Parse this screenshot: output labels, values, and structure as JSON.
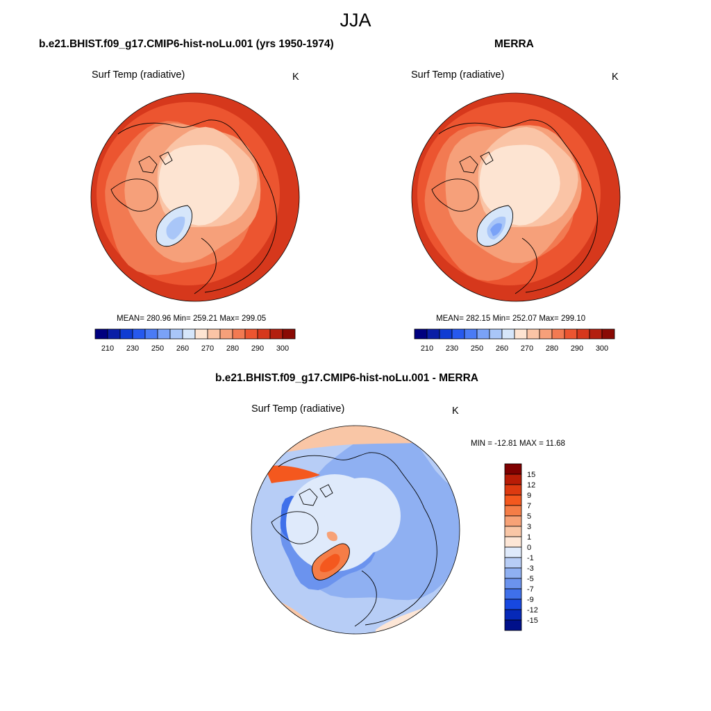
{
  "title": "JJA",
  "panels": [
    {
      "title": "b.e21.BHIST.f09_g17.CMIP6-hist-noLu.001 (yrs 1950-1974)",
      "variable": "Surf Temp (radiative)",
      "units": "K",
      "stats": "MEAN= 280.96  Min= 259.21  Max= 299.05"
    },
    {
      "title": "MERRA",
      "variable": "Surf Temp (radiative)",
      "units": "K",
      "stats": "MEAN= 282.15  Min= 252.07  Max= 299.10"
    }
  ],
  "abs_colorbar": {
    "labels": [
      "210",
      "230",
      "250",
      "260",
      "270",
      "280",
      "290",
      "300"
    ],
    "colors": [
      "#00007f",
      "#0a1ea6",
      "#0f3cd2",
      "#2659ee",
      "#4a7bf5",
      "#7aa2f7",
      "#a9c6f8",
      "#d6e6fa",
      "#fde4d2",
      "#fac4a6",
      "#f6a07a",
      "#f27a52",
      "#ec5530",
      "#d6381c",
      "#b31f0f",
      "#8a0a04"
    ]
  },
  "diff_panel": {
    "title": "b.e21.BHIST.f09_g17.CMIP6-hist-noLu.001 - MERRA",
    "variable": "Surf Temp (radiative)",
    "units": "K",
    "stats": "MIN = -12.81 MAX =  11.68"
  },
  "diff_colorbar": {
    "labels": [
      "15",
      "12",
      "9",
      "7",
      "5",
      "3",
      "1",
      "0",
      "-1",
      "-3",
      "-5",
      "-7",
      "-9",
      "-12",
      "-15"
    ],
    "colors": [
      "#7f0000",
      "#b81c06",
      "#dd3a10",
      "#f4581e",
      "#f57d47",
      "#f7a277",
      "#f9c6a6",
      "#fde6d6",
      "#dfeafb",
      "#b7cdf6",
      "#8fb0f2",
      "#6b93ee",
      "#3f70ea",
      "#1748e0",
      "#0629b8",
      "#00108a"
    ]
  }
}
